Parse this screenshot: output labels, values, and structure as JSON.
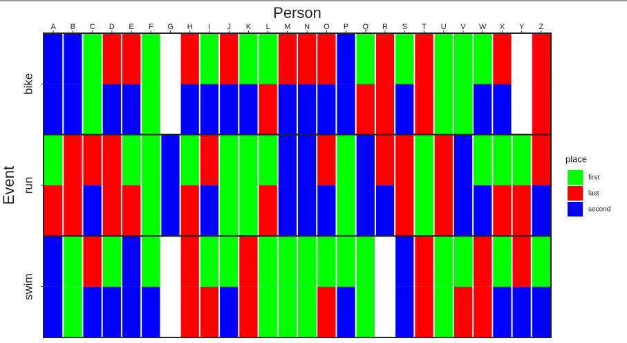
{
  "chart_data": {
    "type": "tile",
    "title": "Person",
    "y_label": "Event",
    "categories": [
      "A",
      "B",
      "C",
      "D",
      "E",
      "F",
      "G",
      "H",
      "I",
      "J",
      "K",
      "L",
      "M",
      "N",
      "O",
      "P",
      "Q",
      "R",
      "S",
      "T",
      "U",
      "V",
      "W",
      "X",
      "Y",
      "Z"
    ],
    "facets": [
      {
        "name": "bike",
        "rows": [
          [
            "second",
            "second",
            "first",
            "last",
            "last",
            "first",
            null,
            "last",
            "first",
            "last",
            "first",
            "first",
            "last",
            "last",
            "last",
            "second",
            "first",
            "last",
            "first",
            "last",
            "first",
            "first",
            "first",
            "last",
            null,
            "last"
          ],
          [
            "second",
            "second",
            "first",
            "second",
            "second",
            "first",
            null,
            "second",
            "second",
            "second",
            "second",
            "last",
            "second",
            "second",
            "second",
            "second",
            "last",
            "last",
            "second",
            "last",
            "first",
            "first",
            "second",
            "second",
            null,
            "last"
          ]
        ]
      },
      {
        "name": "run",
        "rows": [
          [
            "first",
            "last",
            "last",
            "last",
            "first",
            "first",
            "second",
            "first",
            "last",
            "first",
            "first",
            "first",
            "second",
            "second",
            "last",
            "first",
            "second",
            "last",
            "last",
            "first",
            "last",
            "second",
            "first",
            "first",
            "first",
            "last"
          ],
          [
            "last",
            "last",
            "second",
            "last",
            "last",
            "first",
            "second",
            "last",
            "second",
            "first",
            "first",
            "last",
            "second",
            "second",
            "second",
            "first",
            "second",
            "second",
            "last",
            "first",
            "last",
            "second",
            "second",
            "last",
            "last",
            "second"
          ]
        ]
      },
      {
        "name": "swim",
        "rows": [
          [
            "second",
            "first",
            "last",
            "first",
            "second",
            "first",
            null,
            "last",
            "first",
            "first",
            "last",
            "first",
            "first",
            "first",
            "first",
            "first",
            "first",
            null,
            "second",
            "last",
            "first",
            "first",
            "last",
            "first",
            "last",
            "first"
          ],
          [
            "second",
            "first",
            "second",
            "second",
            "second",
            "second",
            null,
            "last",
            "last",
            "second",
            "last",
            "first",
            "first",
            "first",
            "last",
            "second",
            "first",
            null,
            "second",
            "last",
            "first",
            "last",
            "last",
            "second",
            "second",
            "second"
          ]
        ]
      }
    ],
    "legend": {
      "title": "place",
      "items": [
        {
          "name": "first",
          "color": "#00ff00"
        },
        {
          "name": "last",
          "color": "#ff0000"
        },
        {
          "name": "second",
          "color": "#0000ff"
        }
      ]
    }
  }
}
